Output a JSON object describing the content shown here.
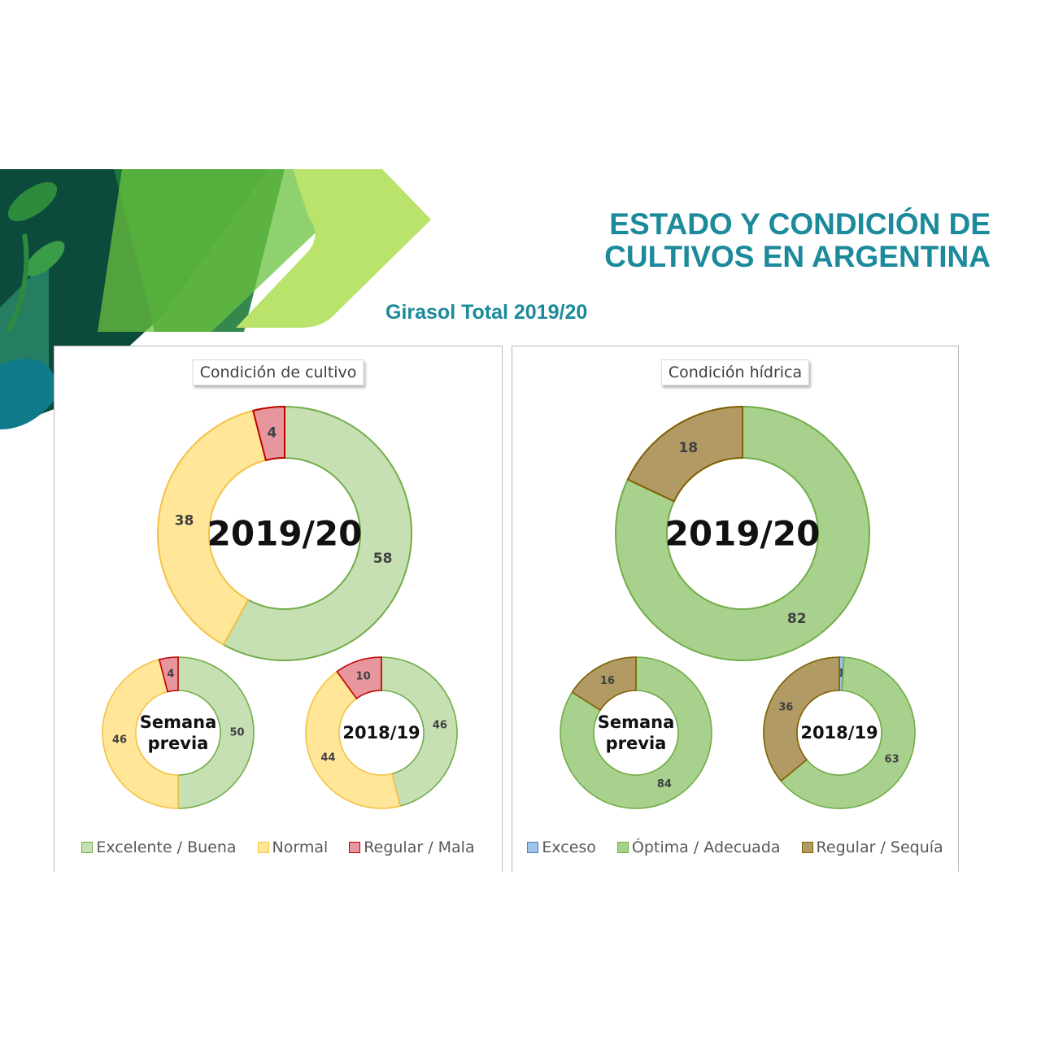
{
  "header": {
    "title_line1": "ESTADO Y CONDICIÓN DE",
    "title_line2": "CULTIVOS EN ARGENTINA",
    "subtitle": "Girasol Total 2019/20"
  },
  "colors": {
    "accent": "#1b8a9a",
    "excelente": "#c6e0b4",
    "excelente_border": "#70ad47",
    "normal": "#ffe699",
    "normal_border": "#f4c242",
    "regular_mala": "#e6969c",
    "regular_mala_border": "#c00000",
    "exceso": "#9dc3e6",
    "exceso_border": "#4f81bd",
    "optima": "#a9d18e",
    "optima_border": "#70ad47",
    "sequia": "#b19a64",
    "sequia_border": "#7f6000"
  },
  "chart_data": [
    {
      "type": "pie",
      "title": "Condición  de cultivo",
      "legend": [
        {
          "label": "Excelente / Buena",
          "color": "#c6e0b4",
          "border": "#70ad47"
        },
        {
          "label": "Normal",
          "color": "#ffe699",
          "border": "#f4c242"
        },
        {
          "label": "Regular / Mala",
          "color": "#e6969c",
          "border": "#c00000"
        }
      ],
      "legend_position": "bottom",
      "donuts": [
        {
          "center_label": [
            "2019/20"
          ],
          "values": [
            58,
            38,
            4
          ]
        },
        {
          "center_label": [
            "Semana",
            "previa"
          ],
          "values": [
            50,
            46,
            4
          ]
        },
        {
          "center_label": [
            "2018/19"
          ],
          "values": [
            46,
            44,
            10
          ]
        }
      ]
    },
    {
      "type": "pie",
      "title": "Condición  hídrica",
      "legend": [
        {
          "label": "Exceso",
          "color": "#9dc3e6",
          "border": "#4f81bd"
        },
        {
          "label": "Óptima / Adecuada",
          "color": "#a9d18e",
          "border": "#70ad47"
        },
        {
          "label": "Regular / Sequía",
          "color": "#b19a64",
          "border": "#7f6000"
        }
      ],
      "legend_position": "bottom",
      "donuts": [
        {
          "center_label": [
            "2019/20"
          ],
          "values": [
            0,
            82,
            18
          ]
        },
        {
          "center_label": [
            "Semana",
            "previa"
          ],
          "values": [
            0,
            84,
            16
          ]
        },
        {
          "center_label": [
            "2018/19"
          ],
          "values": [
            1,
            63,
            36
          ]
        }
      ]
    }
  ]
}
